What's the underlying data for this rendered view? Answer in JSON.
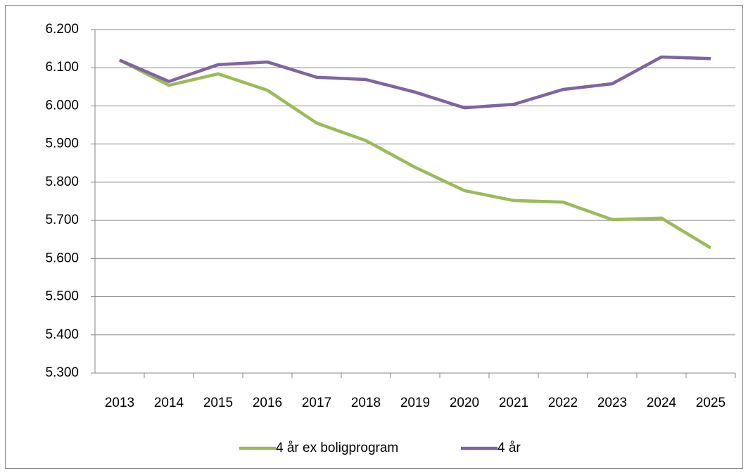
{
  "chart_data": {
    "type": "line",
    "categories": [
      "2013",
      "2014",
      "2015",
      "2016",
      "2017",
      "2018",
      "2019",
      "2020",
      "2021",
      "2022",
      "2023",
      "2024",
      "2025"
    ],
    "series": [
      {
        "name": "4 år ex boligprogram",
        "color": "#9bbb59",
        "values": [
          6120,
          6054,
          6084,
          6041,
          5955,
          5909,
          5839,
          5778,
          5752,
          5748,
          5702,
          5706,
          5628
        ]
      },
      {
        "name": "4 år",
        "color": "#8064a2",
        "values": [
          6120,
          6064,
          6108,
          6115,
          6075,
          6069,
          6036,
          5995,
          6004,
          6043,
          6058,
          6128,
          6124
        ]
      }
    ],
    "ylim": [
      5300,
      6200
    ],
    "yticks": [
      {
        "value": 5300,
        "label": "5.300"
      },
      {
        "value": 5400,
        "label": "5.400"
      },
      {
        "value": 5500,
        "label": "5.500"
      },
      {
        "value": 5600,
        "label": "5.600"
      },
      {
        "value": 5700,
        "label": "5.700"
      },
      {
        "value": 5800,
        "label": "5.800"
      },
      {
        "value": 5900,
        "label": "5.900"
      },
      {
        "value": 6000,
        "label": "6.000"
      },
      {
        "value": 6100,
        "label": "6.100"
      },
      {
        "value": 6200,
        "label": "6.200"
      }
    ],
    "grid": true,
    "legend": "bottom"
  }
}
